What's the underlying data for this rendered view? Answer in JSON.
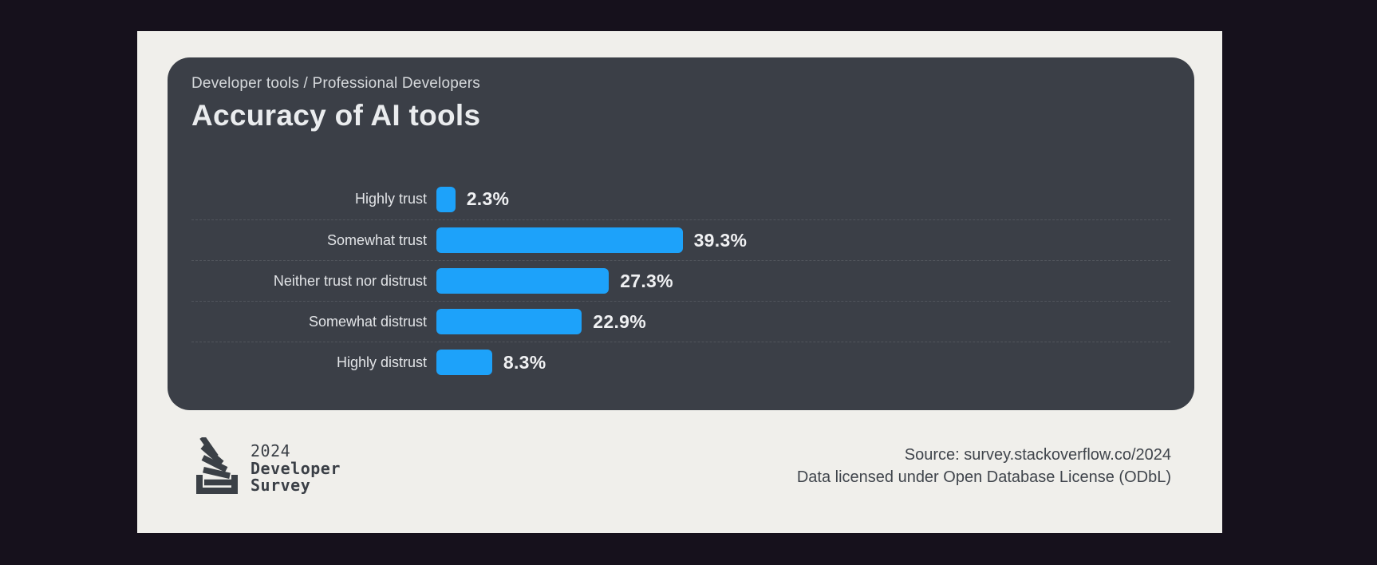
{
  "page": {
    "background_color": "#16111c",
    "panel_color": "#f0efeb"
  },
  "card": {
    "background_color": "#3b3f47",
    "breadcrumb": "Developer tools / Professional Developers",
    "title": "Accuracy of AI tools"
  },
  "chart_data": {
    "type": "bar",
    "orientation": "horizontal",
    "title": "Accuracy of AI tools",
    "subtitle": "Developer tools / Professional Developers",
    "categories": [
      "Highly trust",
      "Somewhat trust",
      "Neither trust nor distrust",
      "Somewhat distrust",
      "Highly distrust"
    ],
    "values": [
      2.3,
      39.3,
      27.3,
      22.9,
      8.3
    ],
    "value_labels": [
      "2.3%",
      "39.3%",
      "27.3%",
      "22.9%",
      "8.3%"
    ],
    "unit": "%",
    "bar_color": "#1da2fa",
    "separator_style": "dashed",
    "xlim": [
      0,
      100
    ],
    "grid": false,
    "legend": false
  },
  "footer": {
    "logo": {
      "icon": "stackoverflow-logo-icon",
      "year": "2024",
      "line1": "Developer",
      "line2": "Survey"
    },
    "source_line1": "Source: survey.stackoverflow.co/2024",
    "source_line2": "Data licensed under Open Database License (ODbL)"
  }
}
